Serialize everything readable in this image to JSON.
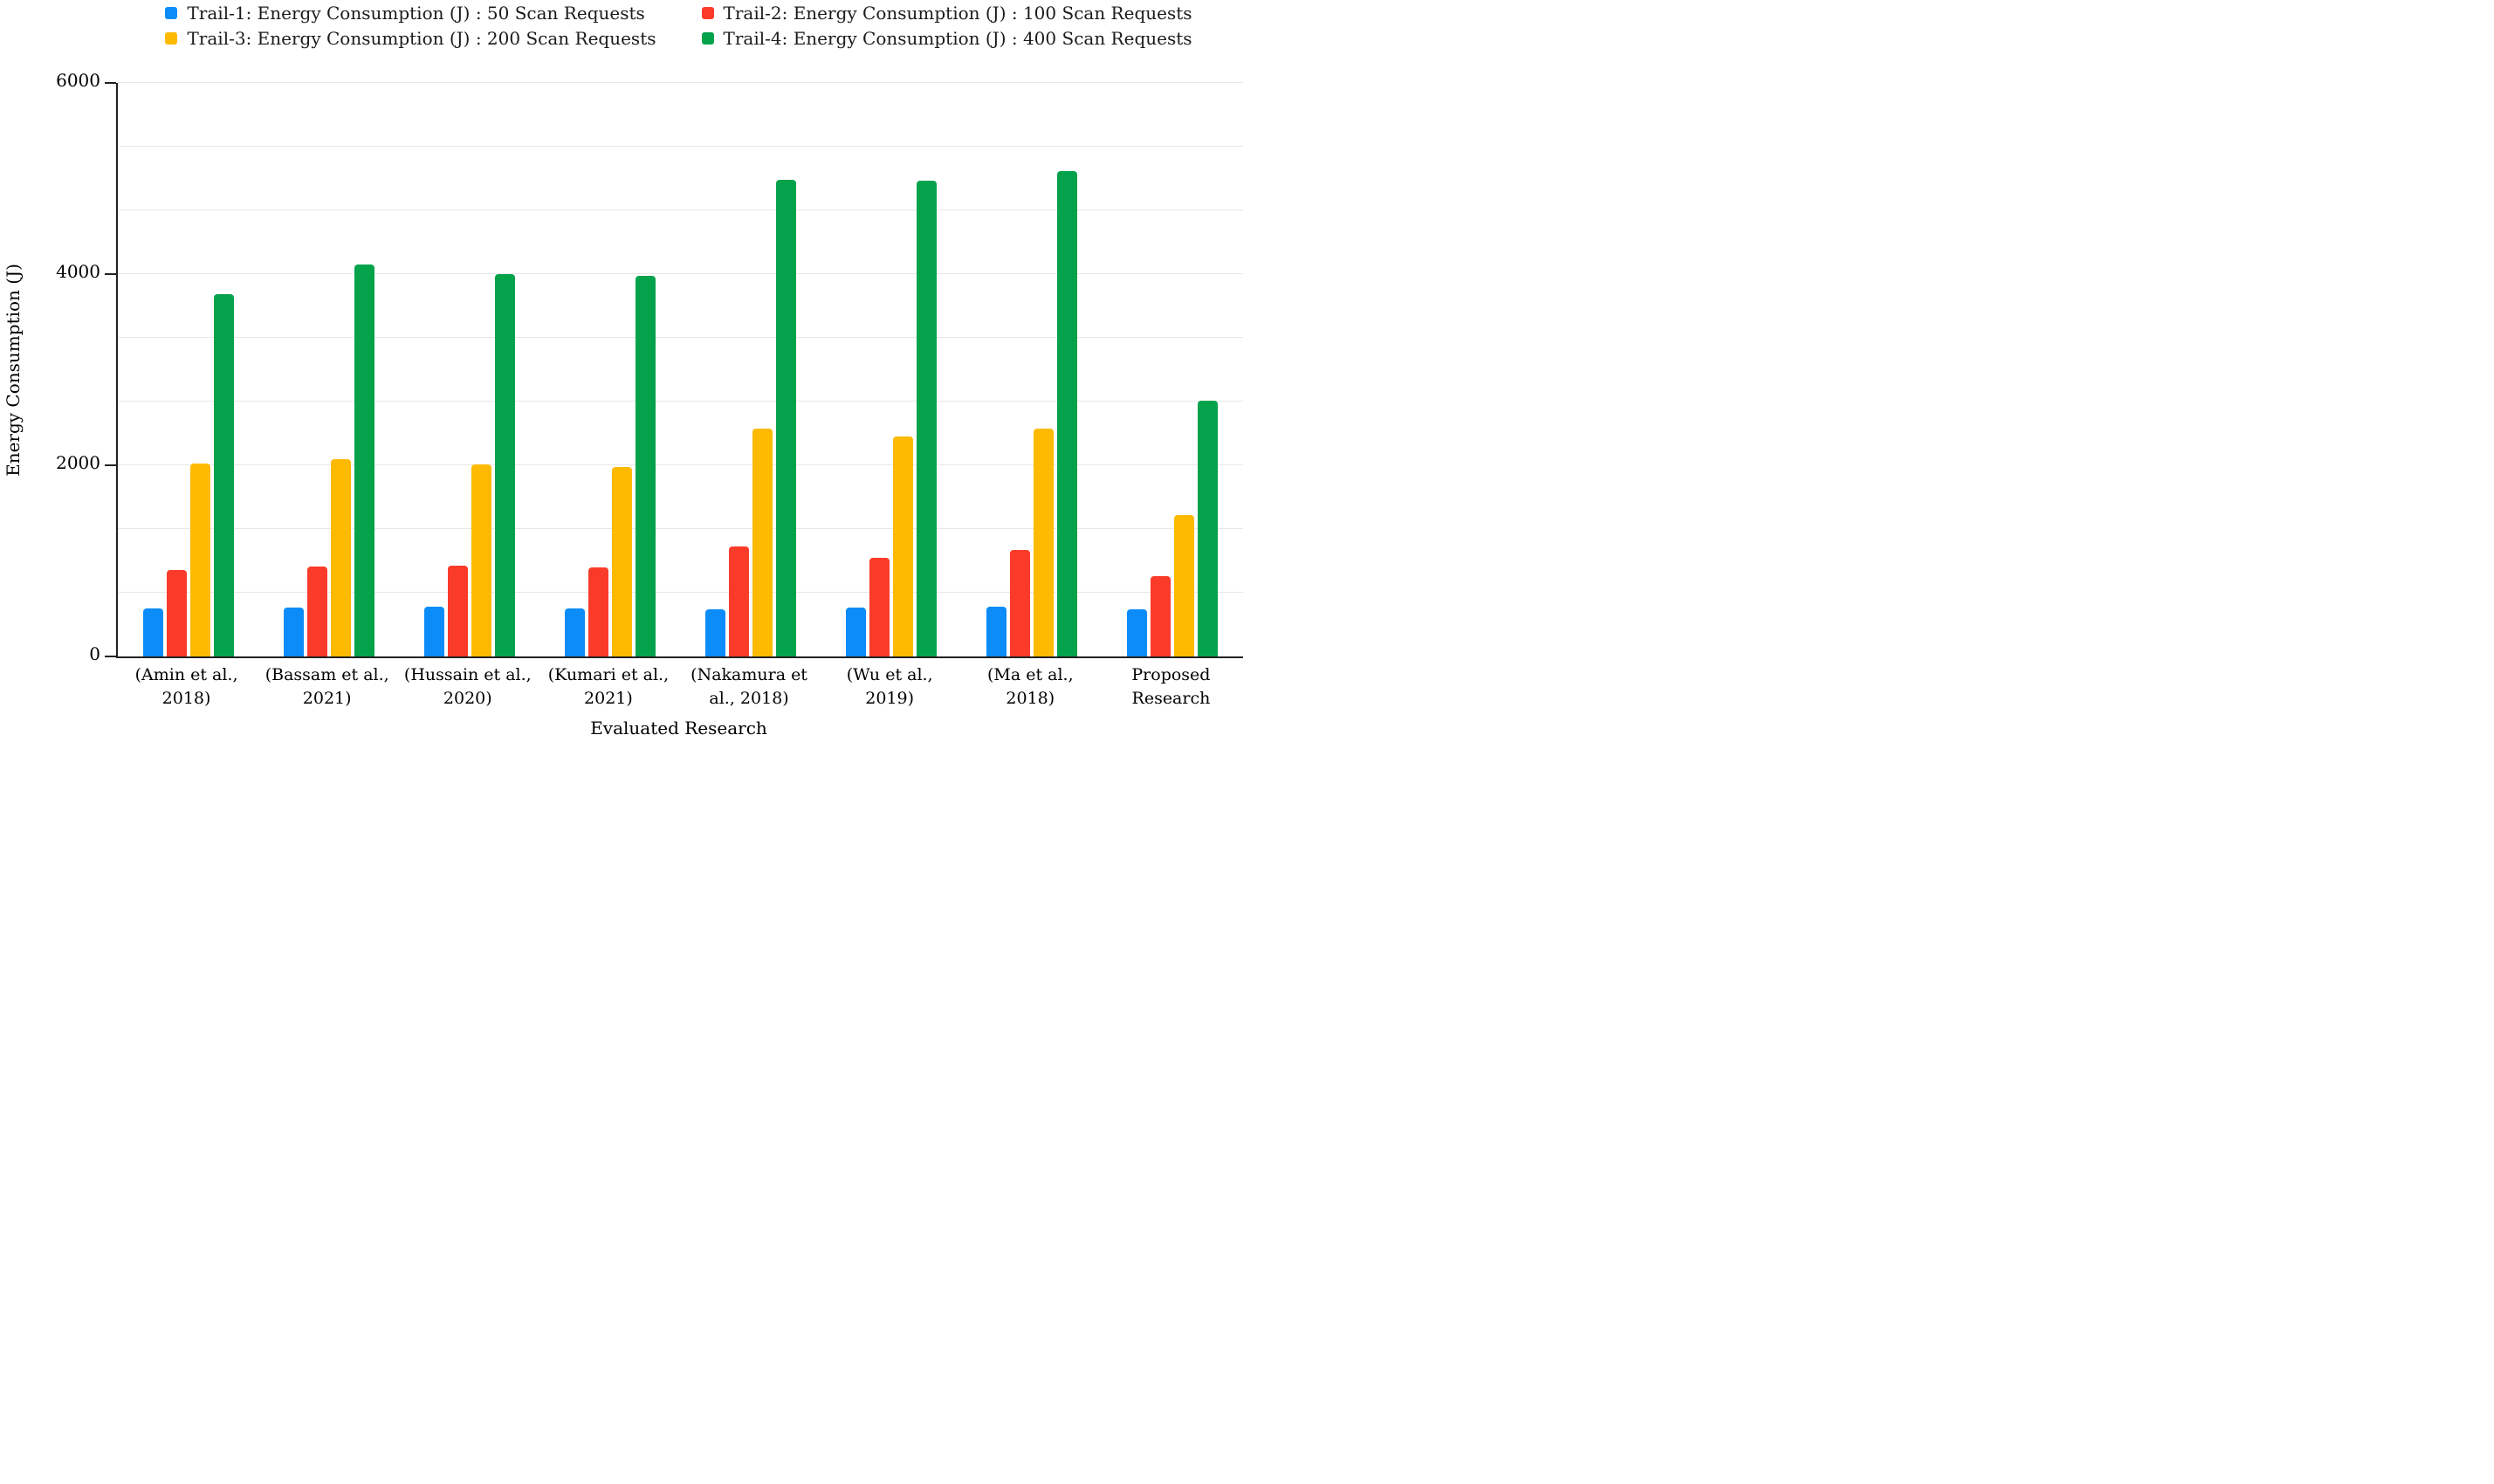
{
  "chart_data": {
    "type": "bar",
    "title": "",
    "xlabel": "Evaluated Research",
    "ylabel": "Energy Consumption (J)",
    "ylim": [
      0,
      6000
    ],
    "yticks": [
      0,
      2000,
      4000,
      6000
    ],
    "gridline_divisions": 9,
    "grid": true,
    "legend_position": "top",
    "categories": [
      "(Amin et al., 2018)",
      "(Bassam et al., 2021)",
      "(Hussain et al., 2020)",
      "(Kumari et al., 2021)",
      "(Nakamura et al., 2018)",
      "(Wu et al., 2019)",
      "(Ma et al., 2018)",
      "Proposed Research"
    ],
    "series": [
      {
        "name": "Trail-1: Energy Consumption (J) : 50 Scan Requests",
        "color": "#0b8cf8",
        "values": [
          500,
          510,
          520,
          500,
          490,
          510,
          520,
          490
        ]
      },
      {
        "name": "Trail-2: Energy Consumption (J) : 100 Scan Requests",
        "color": "#fa3b2a",
        "values": [
          900,
          940,
          950,
          930,
          1150,
          1030,
          1110,
          840
        ]
      },
      {
        "name": "Trail-3: Energy Consumption (J) : 200 Scan Requests",
        "color": "#fdba00",
        "values": [
          2020,
          2060,
          2010,
          1980,
          2380,
          2300,
          2380,
          1480
        ]
      },
      {
        "name": "Trail-4: Energy Consumption (J) : 400 Scan Requests",
        "color": "#05a24c",
        "values": [
          3790,
          4100,
          4000,
          3980,
          4990,
          4980,
          5080,
          2680
        ]
      }
    ]
  }
}
